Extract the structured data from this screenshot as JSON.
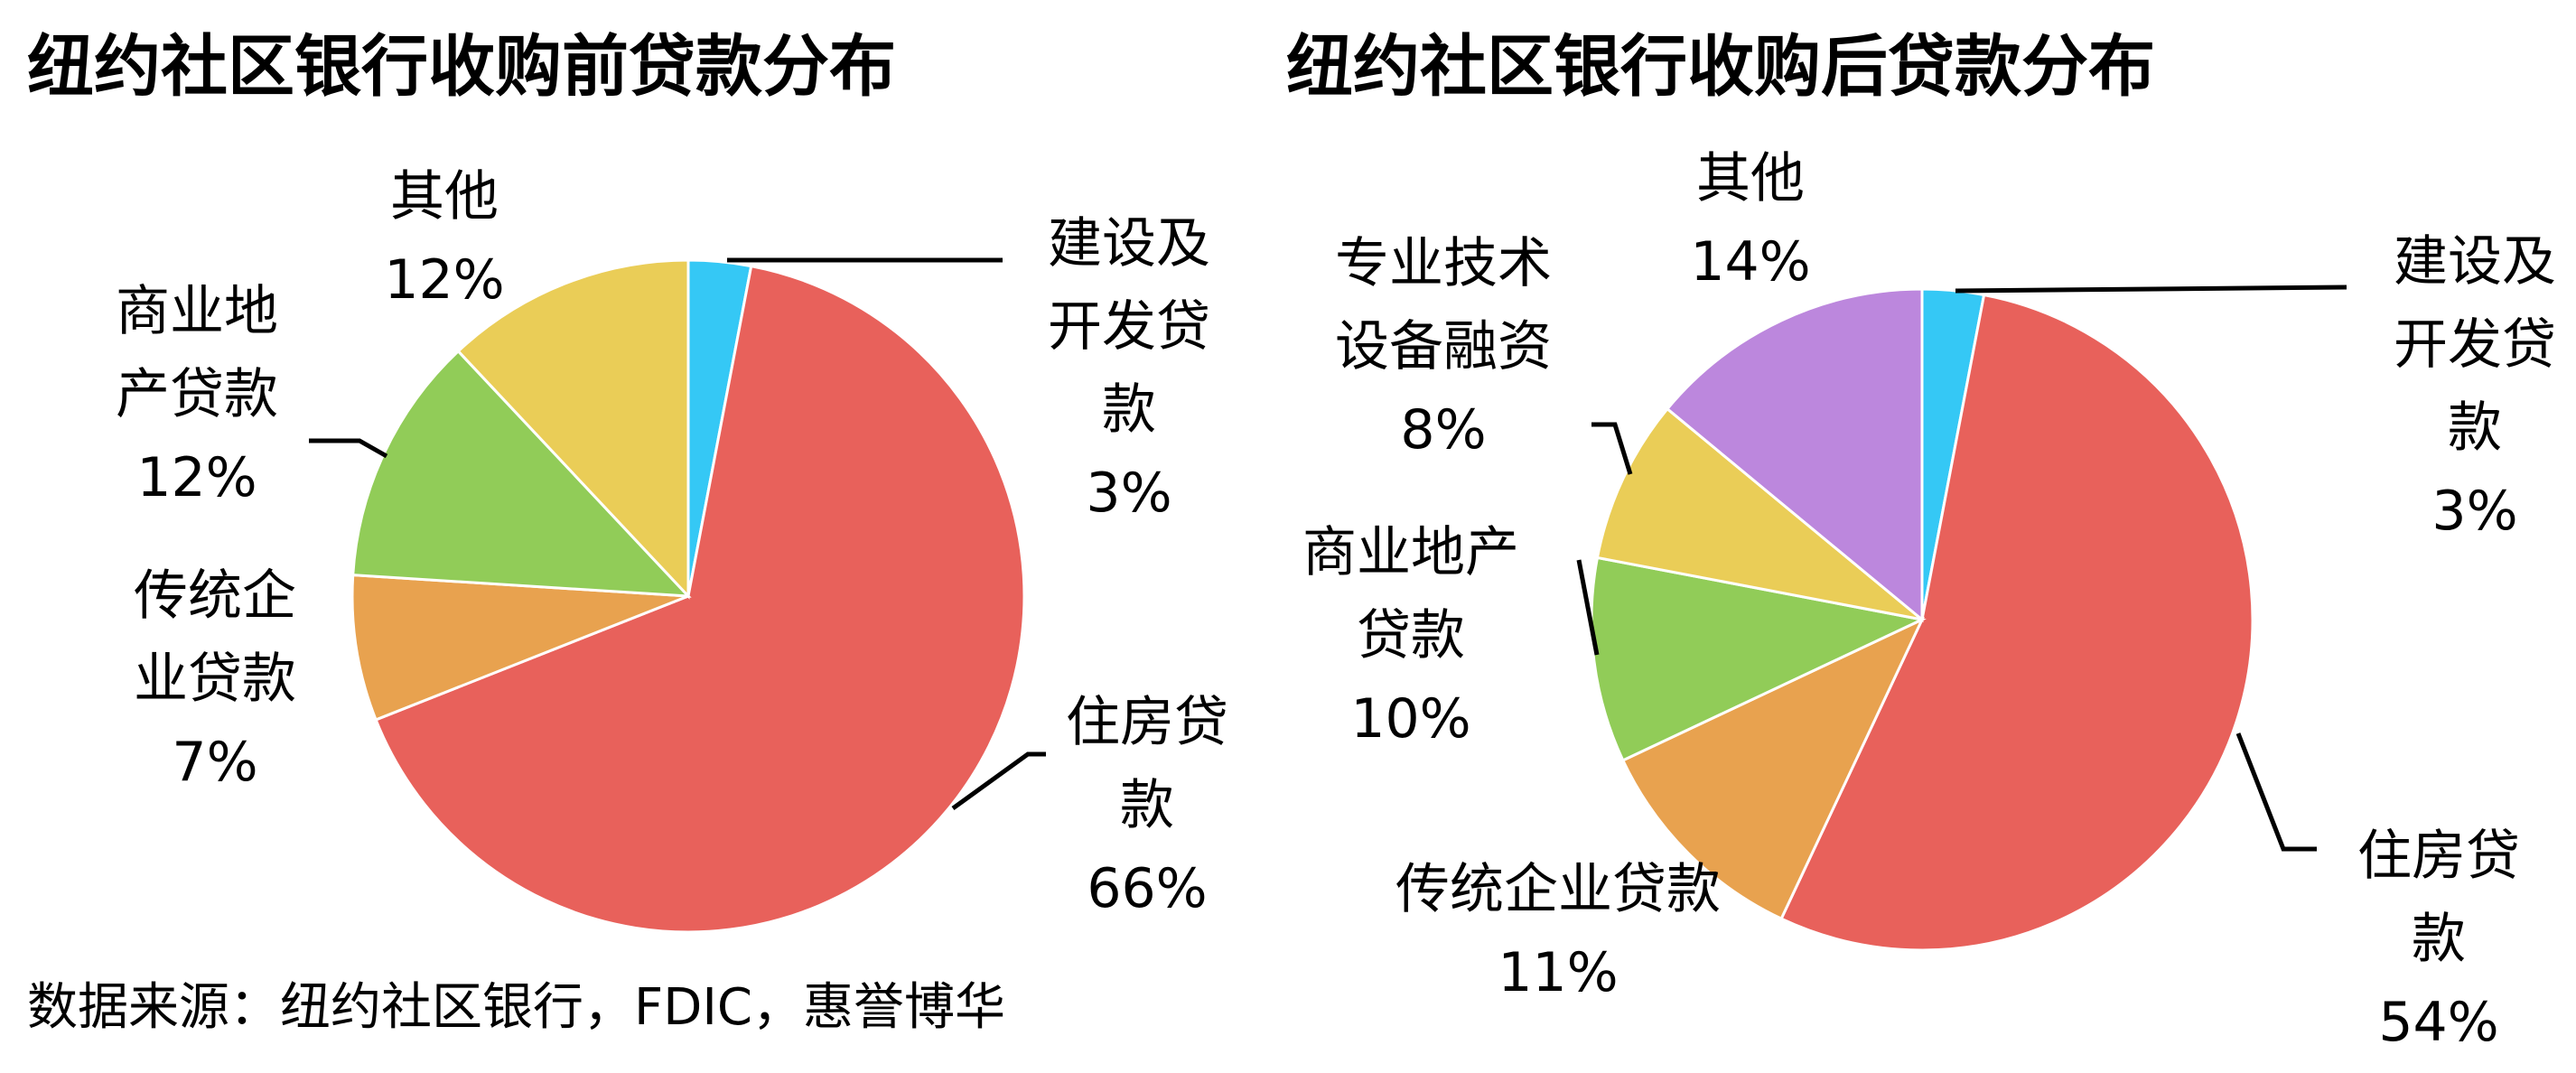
{
  "chart_data": [
    {
      "type": "pie",
      "title": "纽约社区银行收购前贷款分布",
      "categories": [
        "建设及开发贷款",
        "住房贷款",
        "传统企业贷款",
        "商业地产贷款",
        "其他"
      ],
      "values": [
        3,
        66,
        7,
        12,
        12
      ],
      "unit": "%",
      "colors": [
        "#35C8F5",
        "#E8615B",
        "#E8A24F",
        "#91CC58",
        "#EACD57"
      ],
      "labels": [
        {
          "lines": [
            "建设及",
            "开发贷",
            "款",
            "3%"
          ]
        },
        {
          "lines": [
            "住房贷",
            "款",
            "66%"
          ]
        },
        {
          "lines": [
            "传统企",
            "业贷款",
            "7%"
          ]
        },
        {
          "lines": [
            "商业地",
            "产贷款",
            "12%"
          ]
        },
        {
          "lines": [
            "其他",
            "12%"
          ]
        }
      ]
    },
    {
      "type": "pie",
      "title": "纽约社区银行收购后贷款分布",
      "categories": [
        "建设及开发贷款",
        "住房贷款",
        "传统企业贷款",
        "商业地产贷款",
        "专业技术设备融资",
        "其他"
      ],
      "values": [
        3,
        54,
        11,
        10,
        8,
        14
      ],
      "unit": "%",
      "colors": [
        "#35C8F5",
        "#E8615B",
        "#E8A24F",
        "#91CC58",
        "#EACD57",
        "#BC87DD"
      ],
      "labels": [
        {
          "lines": [
            "建设及",
            "开发贷",
            "款",
            "3%"
          ]
        },
        {
          "lines": [
            "住房贷",
            "款",
            "54%"
          ]
        },
        {
          "lines": [
            "传统企业贷款",
            "11%"
          ]
        },
        {
          "lines": [
            "商业地产",
            "贷款",
            "10%"
          ]
        },
        {
          "lines": [
            "专业技术",
            "设备融资",
            "8%"
          ]
        },
        {
          "lines": [
            "其他",
            "14%"
          ]
        }
      ]
    }
  ],
  "source": "数据来源：纽约社区银行，FDIC，惠誉博华"
}
